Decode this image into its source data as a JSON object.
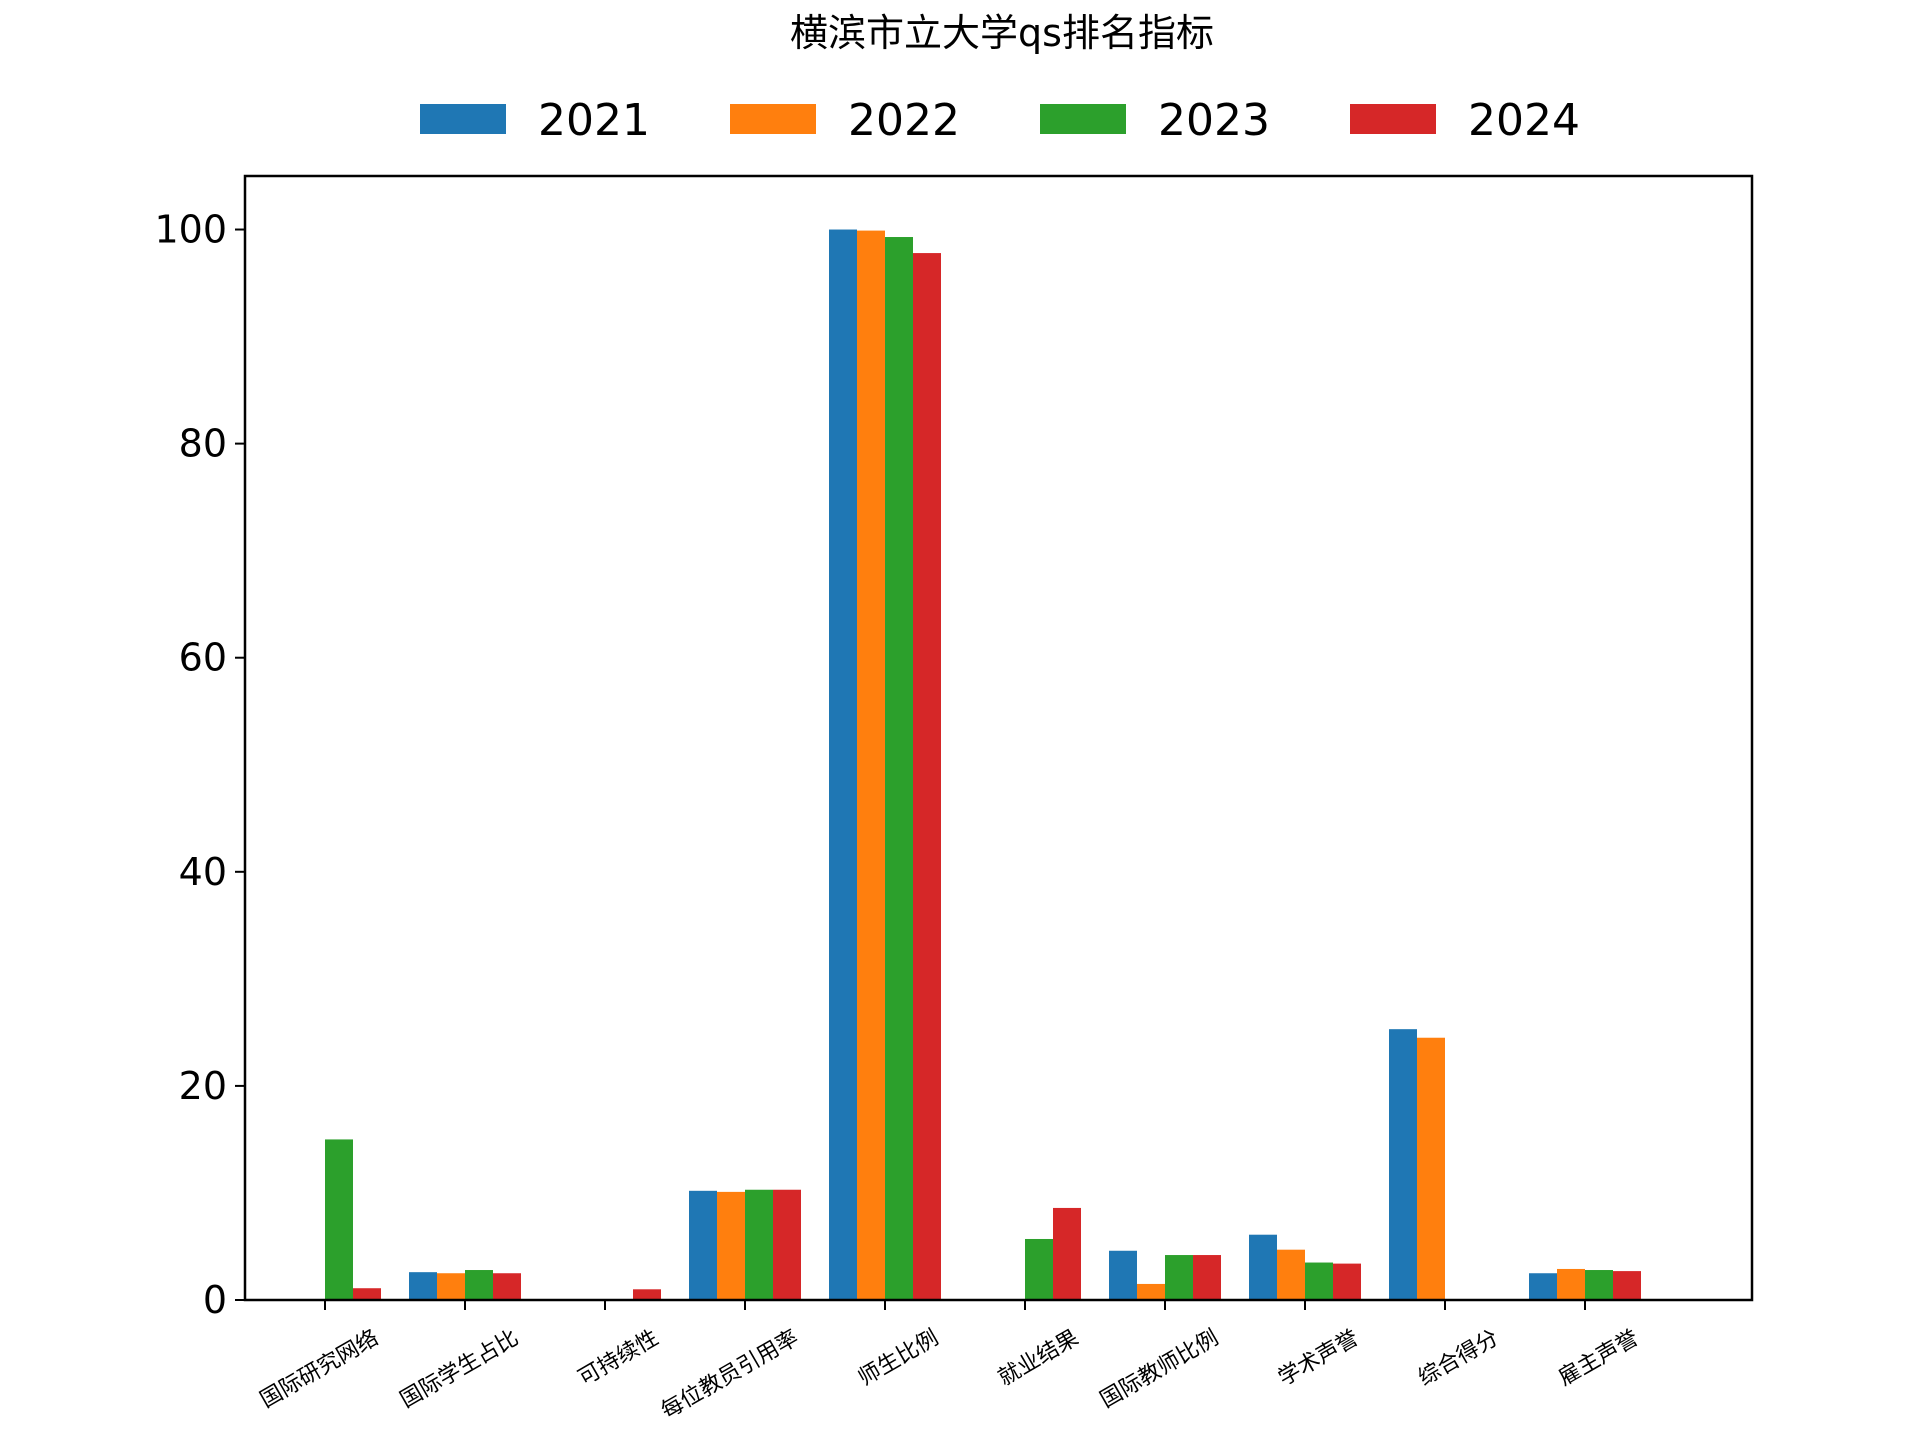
{
  "chart_data": {
    "type": "bar",
    "title": "横滨市立大学qs排名指标",
    "xlabel": "",
    "ylabel": "",
    "ylim": [
      0,
      105
    ],
    "yticks": [
      "0",
      "20",
      "40",
      "60",
      "80",
      "100"
    ],
    "grid": false,
    "legend_position": "top-center",
    "categories": [
      "国际研究网络",
      "国际学生占比",
      "可持续性",
      "每位教员引用率",
      "师生比例",
      "就业结果",
      "国际教师比例",
      "学术声誉",
      "综合得分",
      "雇主声誉"
    ],
    "series": [
      {
        "name": "2021",
        "color": "#1f77b4",
        "values": [
          null,
          2.6,
          null,
          10.2,
          100.0,
          null,
          4.6,
          6.1,
          25.3,
          2.5
        ]
      },
      {
        "name": "2022",
        "color": "#ff7f0e",
        "values": [
          null,
          2.5,
          null,
          10.1,
          99.9,
          null,
          1.5,
          4.7,
          24.5,
          2.9
        ]
      },
      {
        "name": "2023",
        "color": "#2ca02c",
        "values": [
          15.0,
          2.8,
          null,
          10.3,
          99.3,
          5.7,
          4.2,
          3.5,
          null,
          2.8
        ]
      },
      {
        "name": "2024",
        "color": "#d62728",
        "values": [
          1.1,
          2.5,
          1.0,
          10.3,
          97.8,
          8.6,
          4.2,
          3.4,
          null,
          2.7
        ]
      }
    ]
  }
}
